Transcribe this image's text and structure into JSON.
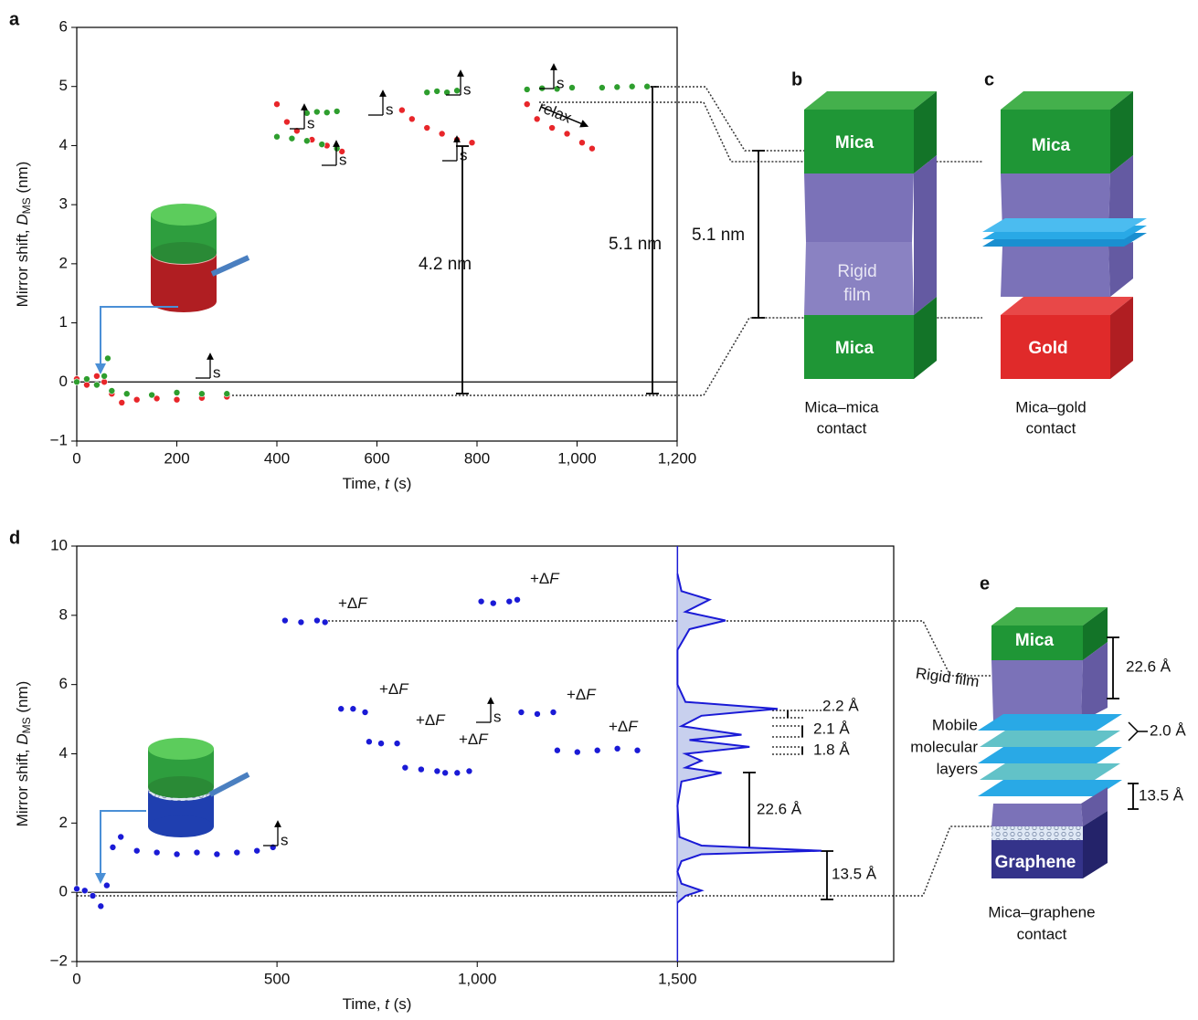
{
  "chart_data": [
    {
      "type": "scatter",
      "panel": "a",
      "xlabel": [
        "Time, ",
        "t",
        " (s)"
      ],
      "ylabel": [
        "Mirror shift, ",
        "D",
        "MS",
        " (nm)"
      ],
      "xlim": [
        0,
        1200
      ],
      "ylim": [
        -1,
        6
      ],
      "xticks": [
        0,
        200,
        400,
        600,
        800,
        {
          "value": 1000,
          "label": "1,000"
        },
        {
          "value": 1200,
          "label": "1,200"
        }
      ],
      "yticks": [
        {
          "value": -1,
          "label": "−1"
        },
        0,
        1,
        2,
        3,
        4,
        5,
        6
      ],
      "series": [
        {
          "color": "#e8262a",
          "x": [
            0,
            20,
            40,
            55,
            70,
            90,
            120,
            160,
            200,
            250,
            300,
            400,
            420,
            440,
            470,
            500,
            530,
            650,
            670,
            700,
            730,
            760,
            790,
            900,
            920,
            950,
            980,
            1010,
            1030
          ],
          "values": [
            0.05,
            -0.05,
            0.1,
            0.0,
            -0.2,
            -0.35,
            -0.3,
            -0.28,
            -0.3,
            -0.27,
            -0.25,
            4.7,
            4.4,
            4.25,
            4.1,
            4.0,
            3.9,
            4.6,
            4.45,
            4.3,
            4.2,
            4.1,
            4.05,
            4.7,
            4.45,
            4.3,
            4.2,
            4.05,
            3.95
          ]
        },
        {
          "color": "#2e9e2e",
          "x": [
            0,
            20,
            40,
            55,
            62,
            70,
            100,
            150,
            200,
            250,
            300,
            400,
            430,
            460,
            490,
            520,
            460,
            480,
            500,
            520,
            700,
            720,
            740,
            760,
            900,
            930,
            960,
            990,
            1050,
            1080,
            1110,
            1140
          ],
          "values": [
            0.0,
            0.05,
            -0.05,
            0.1,
            0.4,
            -0.15,
            -0.2,
            -0.22,
            -0.18,
            -0.2,
            -0.2,
            4.15,
            4.12,
            4.08,
            4.02,
            3.95,
            4.55,
            4.57,
            4.56,
            4.58,
            4.9,
            4.92,
            4.9,
            4.93,
            4.95,
            4.97,
            4.96,
            4.98,
            4.98,
            4.99,
            5.0,
            5.0
          ]
        }
      ],
      "annotations": [
        "4.2 nm",
        "5.1 nm",
        "relax",
        "s"
      ]
    },
    {
      "type": "scatter",
      "panel": "d",
      "xlabel": [
        "Time, ",
        "t",
        " (s)"
      ],
      "ylabel": [
        "Mirror shift, ",
        "D",
        "MS",
        " (nm)"
      ],
      "xlim": [
        0,
        2040
      ],
      "ylim": [
        -2,
        10
      ],
      "xticks": [
        0,
        500,
        {
          "value": 1000,
          "label": "1,000"
        },
        {
          "value": 1500,
          "label": "1,500"
        }
      ],
      "yticks": [
        {
          "value": -2,
          "label": "−2"
        },
        0,
        2,
        4,
        6,
        8,
        10
      ],
      "series": [
        {
          "color": "#1a1ad6",
          "x": [
            0,
            20,
            40,
            60,
            75,
            90,
            110,
            150,
            200,
            250,
            300,
            350,
            400,
            450,
            490,
            520,
            560,
            600,
            620,
            660,
            690,
            720,
            730,
            760,
            800,
            820,
            860,
            900,
            920,
            950,
            980,
            1010,
            1040,
            1080,
            1100,
            1110,
            1150,
            1190,
            1200,
            1250,
            1300,
            1350,
            1400
          ],
          "values": [
            0.1,
            0.05,
            -0.1,
            -0.4,
            0.2,
            1.3,
            1.6,
            1.2,
            1.15,
            1.1,
            1.15,
            1.1,
            1.15,
            1.2,
            1.3,
            7.85,
            7.8,
            7.85,
            7.8,
            5.3,
            5.3,
            5.2,
            4.35,
            4.3,
            4.3,
            3.6,
            3.55,
            3.5,
            3.45,
            3.45,
            3.5,
            8.4,
            8.35,
            8.4,
            8.45,
            5.2,
            5.15,
            5.2,
            4.1,
            4.05,
            4.1,
            4.15,
            4.1
          ]
        },
        {
          "color": "#1a1ad6",
          "fill": "#c8d0ee",
          "x": [
            1500,
            1520,
            1560,
            1510,
            1500,
            1510,
            1560,
            1860,
            1560,
            1505,
            1500,
            1510,
            1610,
            1520,
            1560,
            1520,
            1680,
            1530,
            1660,
            1510,
            1560,
            1750,
            1520,
            1500,
            1500,
            1530,
            1620,
            1520,
            1580,
            1510,
            1500
          ],
          "values": [
            -0.3,
            -0.1,
            0.05,
            0.25,
            0.6,
            0.9,
            1.1,
            1.2,
            1.35,
            1.6,
            2.5,
            3.2,
            3.45,
            3.6,
            3.8,
            4.0,
            4.2,
            4.4,
            4.55,
            4.8,
            5.1,
            5.3,
            5.5,
            6.0,
            7.0,
            7.6,
            7.85,
            8.1,
            8.45,
            8.7,
            9.2
          ]
        }
      ],
      "force_label": [
        "+Δ",
        "F"
      ],
      "annotations": [
        "s",
        "2.2 Å",
        "2.1 Å",
        "1.8 Å",
        "22.6 Å",
        "13.5 Å"
      ]
    }
  ],
  "diagrams": {
    "b": {
      "panel": "b",
      "top": "Mica",
      "middle": [
        "Rigid",
        "film"
      ],
      "bottom": "Mica",
      "caption": [
        "Mica–mica",
        "contact"
      ]
    },
    "c": {
      "panel": "c",
      "top": "Mica",
      "bottom": "Gold",
      "caption": [
        "Mica–gold",
        "contact"
      ]
    },
    "bc_gap": "5.1 nm",
    "e": {
      "panel": "e",
      "top": "Mica",
      "middle": "Rigid film",
      "layers": [
        "Mobile",
        "molecular",
        "layers"
      ],
      "bottom": "Graphene",
      "caption": [
        "Mica–graphene",
        "contact"
      ],
      "spacings": [
        "22.6 Å",
        "2.0 Å",
        "13.5 Å"
      ]
    }
  }
}
